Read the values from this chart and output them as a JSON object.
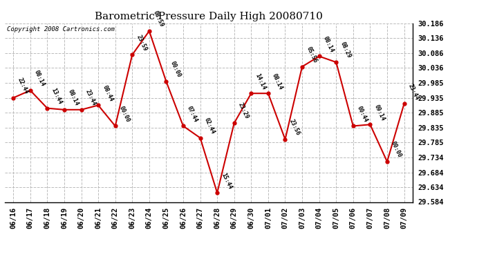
{
  "title": "Barometric Pressure Daily High 20080710",
  "copyright": "Copyright 2008 Cartronics.com",
  "x_labels": [
    "06/16",
    "06/17",
    "06/18",
    "06/19",
    "06/20",
    "06/21",
    "06/22",
    "06/23",
    "06/24",
    "06/25",
    "06/26",
    "06/27",
    "06/28",
    "06/29",
    "06/30",
    "07/01",
    "07/02",
    "07/03",
    "07/04",
    "07/05",
    "07/06",
    "07/07",
    "07/08",
    "07/09"
  ],
  "y_values": [
    29.935,
    29.96,
    29.9,
    29.895,
    29.895,
    29.91,
    29.84,
    30.08,
    30.16,
    29.99,
    29.84,
    29.8,
    29.615,
    29.85,
    29.95,
    29.95,
    29.795,
    30.04,
    30.075,
    30.055,
    29.84,
    29.845,
    29.72,
    29.915
  ],
  "point_labels": [
    "22:44",
    "08:14",
    "13:44",
    "08:14",
    "23:44",
    "08:44",
    "00:00",
    "23:59",
    "08:59",
    "00:00",
    "07:44",
    "02:44",
    "15:44",
    "23:29",
    "14:14",
    "08:14",
    "23:56",
    "05:56",
    "08:14",
    "08:29",
    "00:44",
    "09:14",
    "00:00",
    "23:44"
  ],
  "ylim_min": 29.584,
  "ylim_max": 30.186,
  "yticks": [
    29.584,
    29.634,
    29.684,
    29.734,
    29.785,
    29.835,
    29.885,
    29.935,
    29.985,
    30.036,
    30.086,
    30.136,
    30.186
  ],
  "line_color": "#cc0000",
  "marker_color": "#cc0000",
  "background_color": "#ffffff",
  "grid_color": "#bbbbbb",
  "title_fontsize": 11,
  "copyright_fontsize": 6.5,
  "label_fontsize": 6,
  "tick_fontsize": 7.5
}
